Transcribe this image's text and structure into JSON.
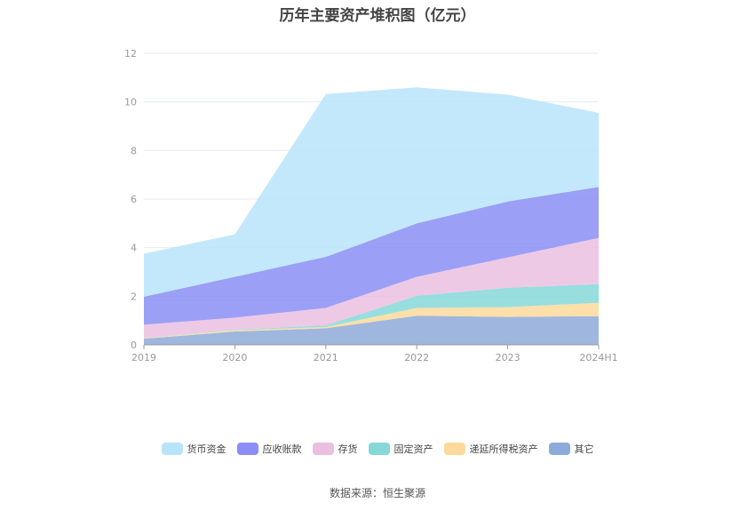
{
  "title": "历年主要资产堆积图（亿元）",
  "source": "数据来源：恒生聚源",
  "chart_data": {
    "type": "area",
    "stacked": true,
    "categories": [
      "2019",
      "2020",
      "2021",
      "2022",
      "2023",
      "2024H1"
    ],
    "ylim": [
      0,
      12
    ],
    "yticks": [
      "0",
      "2",
      "4",
      "6",
      "8",
      "10",
      "12"
    ],
    "grid": true,
    "legend_position": "bottom",
    "series": [
      {
        "name": "其它",
        "color": "#8eaad8",
        "values": [
          0.25,
          0.55,
          0.68,
          1.2,
          1.15,
          1.18
        ]
      },
      {
        "name": "递延所得税资产",
        "color": "#fdd99b",
        "values": [
          0.02,
          0.05,
          0.05,
          0.32,
          0.4,
          0.55
        ]
      },
      {
        "name": "固定资产",
        "color": "#86d8d8",
        "values": [
          0.01,
          0.02,
          0.07,
          0.5,
          0.8,
          0.77
        ]
      },
      {
        "name": "存货",
        "color": "#ebbfe0",
        "values": [
          0.55,
          0.5,
          0.72,
          0.78,
          1.25,
          1.9
        ]
      },
      {
        "name": "应收账款",
        "color": "#8a8ef5",
        "values": [
          1.15,
          1.68,
          2.1,
          2.2,
          2.3,
          2.1
        ]
      },
      {
        "name": "货币资金",
        "color": "#b8e4fa",
        "values": [
          1.77,
          1.75,
          6.7,
          5.6,
          4.4,
          3.05
        ]
      }
    ],
    "legend_order": [
      "货币资金",
      "应收账款",
      "存货",
      "固定资产",
      "递延所得税资产",
      "其它"
    ]
  }
}
